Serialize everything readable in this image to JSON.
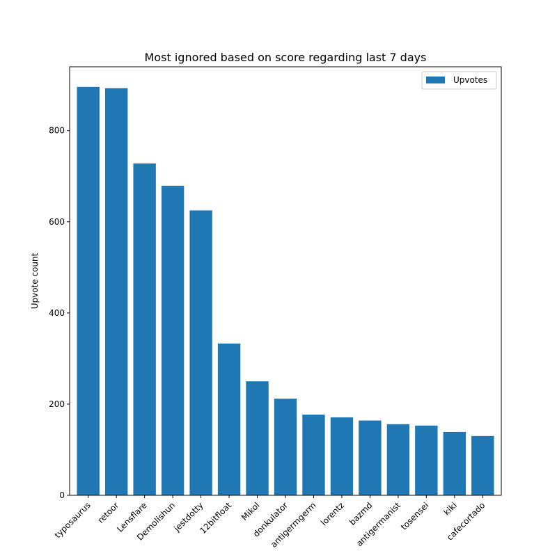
{
  "chart_data": {
    "type": "bar",
    "title": "Most ignored based on score regarding last 7 days",
    "xlabel": "",
    "ylabel": "Upvote count",
    "categories": [
      "typosaurus",
      "retoor",
      "Lensflare",
      "Demolishun",
      "jestdotty",
      "12bitfloat",
      "Mikol",
      "donkulator",
      "antigermgerm",
      "lorentz",
      "bazmd",
      "antigermanist",
      "tosensei",
      "kiki",
      "cafecortado"
    ],
    "series": [
      {
        "name": "Upvotes",
        "color": "#1f77b4",
        "values": [
          896,
          893,
          728,
          679,
          625,
          333,
          250,
          212,
          177,
          171,
          164,
          156,
          153,
          139,
          130
        ]
      }
    ],
    "ylim": [
      0,
      940
    ],
    "yticks": [
      0,
      200,
      400,
      600,
      800
    ],
    "grid": false,
    "legend": {
      "position": "top-right",
      "entries": [
        "Upvotes"
      ]
    }
  }
}
